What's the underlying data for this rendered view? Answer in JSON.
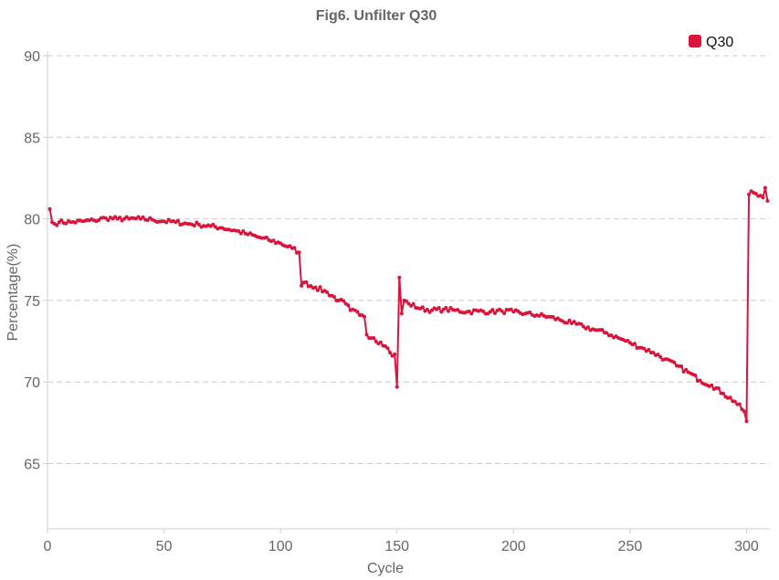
{
  "chart_data": {
    "type": "line",
    "title": "Fig6. Unfilter Q30",
    "xlabel": "Cycle",
    "ylabel": "Percentage(%)",
    "xlim": [
      0,
      310
    ],
    "ylim": [
      61,
      90
    ],
    "x_ticks": [
      0,
      50,
      100,
      150,
      200,
      250,
      300
    ],
    "y_ticks": [
      65,
      70,
      75,
      80,
      85,
      90
    ],
    "grid": "horizontal dashed",
    "legend": "top-right",
    "colors": {
      "series": "#dc143c",
      "grid": "#cccccc",
      "text": "#666666"
    },
    "series": [
      {
        "name": "Q30",
        "anchors": [
          [
            1,
            80.6
          ],
          [
            2,
            79.8
          ],
          [
            3,
            79.7
          ],
          [
            5,
            79.8
          ],
          [
            10,
            79.8
          ],
          [
            15,
            79.85
          ],
          [
            20,
            79.9
          ],
          [
            25,
            80.05
          ],
          [
            30,
            80.0
          ],
          [
            35,
            80.0
          ],
          [
            40,
            80.0
          ],
          [
            45,
            79.95
          ],
          [
            50,
            79.85
          ],
          [
            55,
            79.8
          ],
          [
            60,
            79.7
          ],
          [
            65,
            79.65
          ],
          [
            70,
            79.55
          ],
          [
            75,
            79.45
          ],
          [
            80,
            79.3
          ],
          [
            85,
            79.1
          ],
          [
            90,
            78.9
          ],
          [
            95,
            78.7
          ],
          [
            100,
            78.5
          ],
          [
            105,
            78.2
          ],
          [
            108,
            77.95
          ],
          [
            109,
            75.9
          ],
          [
            110,
            76.1
          ],
          [
            115,
            75.8
          ],
          [
            120,
            75.5
          ],
          [
            125,
            75.0
          ],
          [
            128,
            74.8
          ],
          [
            130,
            74.4
          ],
          [
            135,
            74.1
          ],
          [
            136,
            74.0
          ],
          [
            137,
            72.9
          ],
          [
            140,
            72.7
          ],
          [
            145,
            72.2
          ],
          [
            148,
            71.6
          ],
          [
            149,
            71.7
          ],
          [
            150,
            69.7
          ],
          [
            151,
            76.4
          ],
          [
            152,
            74.2
          ],
          [
            153,
            75.0
          ],
          [
            155,
            74.8
          ],
          [
            160,
            74.5
          ],
          [
            165,
            74.4
          ],
          [
            170,
            74.45
          ],
          [
            175,
            74.4
          ],
          [
            180,
            74.3
          ],
          [
            185,
            74.35
          ],
          [
            190,
            74.3
          ],
          [
            195,
            74.35
          ],
          [
            200,
            74.3
          ],
          [
            205,
            74.2
          ],
          [
            210,
            74.1
          ],
          [
            215,
            74.0
          ],
          [
            220,
            73.8
          ],
          [
            225,
            73.6
          ],
          [
            230,
            73.4
          ],
          [
            235,
            73.2
          ],
          [
            240,
            73.0
          ],
          [
            245,
            72.7
          ],
          [
            250,
            72.4
          ],
          [
            255,
            72.1
          ],
          [
            260,
            71.8
          ],
          [
            265,
            71.4
          ],
          [
            270,
            71.0
          ],
          [
            275,
            70.6
          ],
          [
            280,
            70.1
          ],
          [
            285,
            69.8
          ],
          [
            290,
            69.3
          ],
          [
            295,
            68.8
          ],
          [
            299,
            68.2
          ],
          [
            300,
            67.6
          ],
          [
            301,
            81.5
          ],
          [
            302,
            81.7
          ],
          [
            303,
            81.6
          ],
          [
            305,
            81.4
          ],
          [
            307,
            81.3
          ],
          [
            308,
            81.9
          ],
          [
            309,
            81.1
          ]
        ]
      }
    ]
  }
}
